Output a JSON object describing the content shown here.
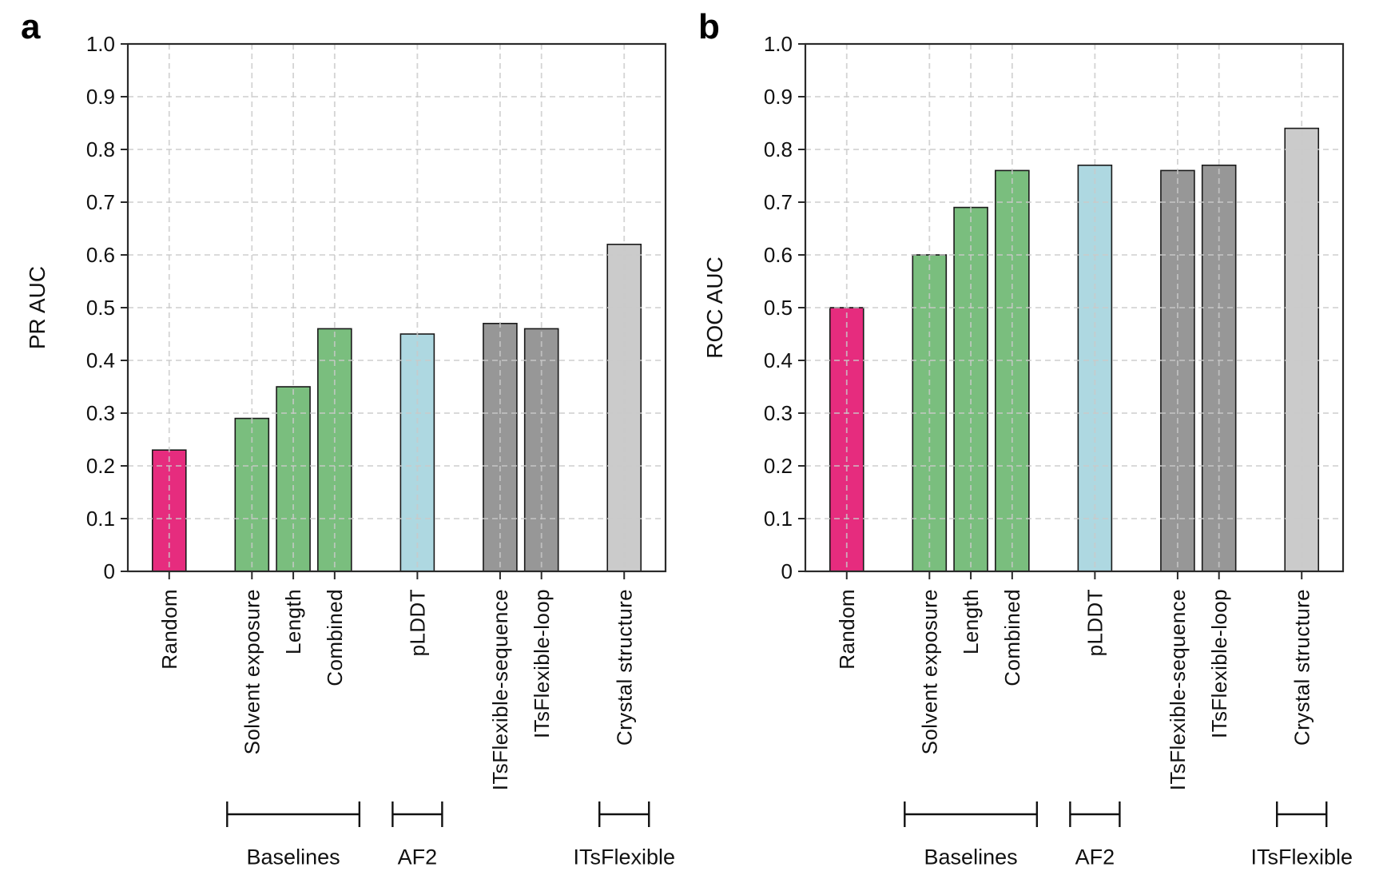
{
  "chart_data": [
    {
      "type": "bar",
      "panel_label": "a",
      "ylabel": "PR AUC",
      "categories": [
        "Random",
        "Solvent exposure",
        "Length",
        "Combined",
        "pLDDT",
        "ITsFlexible-sequence",
        "ITsFlexible-loop",
        "Crystal structure"
      ],
      "values": [
        0.23,
        0.29,
        0.35,
        0.46,
        0.45,
        0.47,
        0.46,
        0.62
      ],
      "bar_colors": [
        "#e41a73",
        "#6fb873",
        "#6fb873",
        "#6fb873",
        "#a7d5de",
        "#8e8e8e",
        "#8e8e8e",
        "#c7c7c7"
      ],
      "ylim": [
        0,
        1.0
      ],
      "yticks": [
        "0",
        "0.1",
        "0.2",
        "0.3",
        "0.4",
        "0.5",
        "0.6",
        "0.7",
        "0.8",
        "0.9",
        "1.0"
      ],
      "grid": "dashed, horizontal and vertical, drawn over bars",
      "legend": null,
      "group_annotations": [
        {
          "label": "Baselines",
          "start_category": "Solvent exposure",
          "end_category": "Combined"
        },
        {
          "label": "AF2",
          "start_category": "pLDDT",
          "end_category": "pLDDT"
        },
        {
          "label": "ITsFlexible",
          "start_category": "Crystal structure",
          "end_category": "Crystal structure"
        }
      ]
    },
    {
      "type": "bar",
      "panel_label": "b",
      "ylabel": "ROC AUC",
      "categories": [
        "Random",
        "Solvent exposure",
        "Length",
        "Combined",
        "pLDDT",
        "ITsFlexible-sequence",
        "ITsFlexible-loop",
        "Crystal structure"
      ],
      "values": [
        0.5,
        0.6,
        0.69,
        0.76,
        0.77,
        0.76,
        0.77,
        0.84
      ],
      "bar_colors": [
        "#e41a73",
        "#6fb873",
        "#6fb873",
        "#6fb873",
        "#a7d5de",
        "#8e8e8e",
        "#8e8e8e",
        "#c7c7c7"
      ],
      "ylim": [
        0,
        1.0
      ],
      "yticks": [
        "0",
        "0.1",
        "0.2",
        "0.3",
        "0.4",
        "0.5",
        "0.6",
        "0.7",
        "0.8",
        "0.9",
        "1.0"
      ],
      "grid": "dashed, horizontal and vertical, drawn over bars",
      "legend": null,
      "group_annotations": [
        {
          "label": "Baselines",
          "start_category": "Solvent exposure",
          "end_category": "Combined"
        },
        {
          "label": "AF2",
          "start_category": "pLDDT",
          "end_category": "pLDDT"
        },
        {
          "label": "ITsFlexible",
          "start_category": "Crystal structure",
          "end_category": "Crystal structure"
        }
      ]
    }
  ],
  "style": {
    "background": "#ffffff",
    "bar_edge": "#1a1a1a",
    "grid_color": "#c9c9c9",
    "spine_color": "#2a2a2a",
    "text_color": "#111111",
    "bracket_color": "#111111"
  }
}
